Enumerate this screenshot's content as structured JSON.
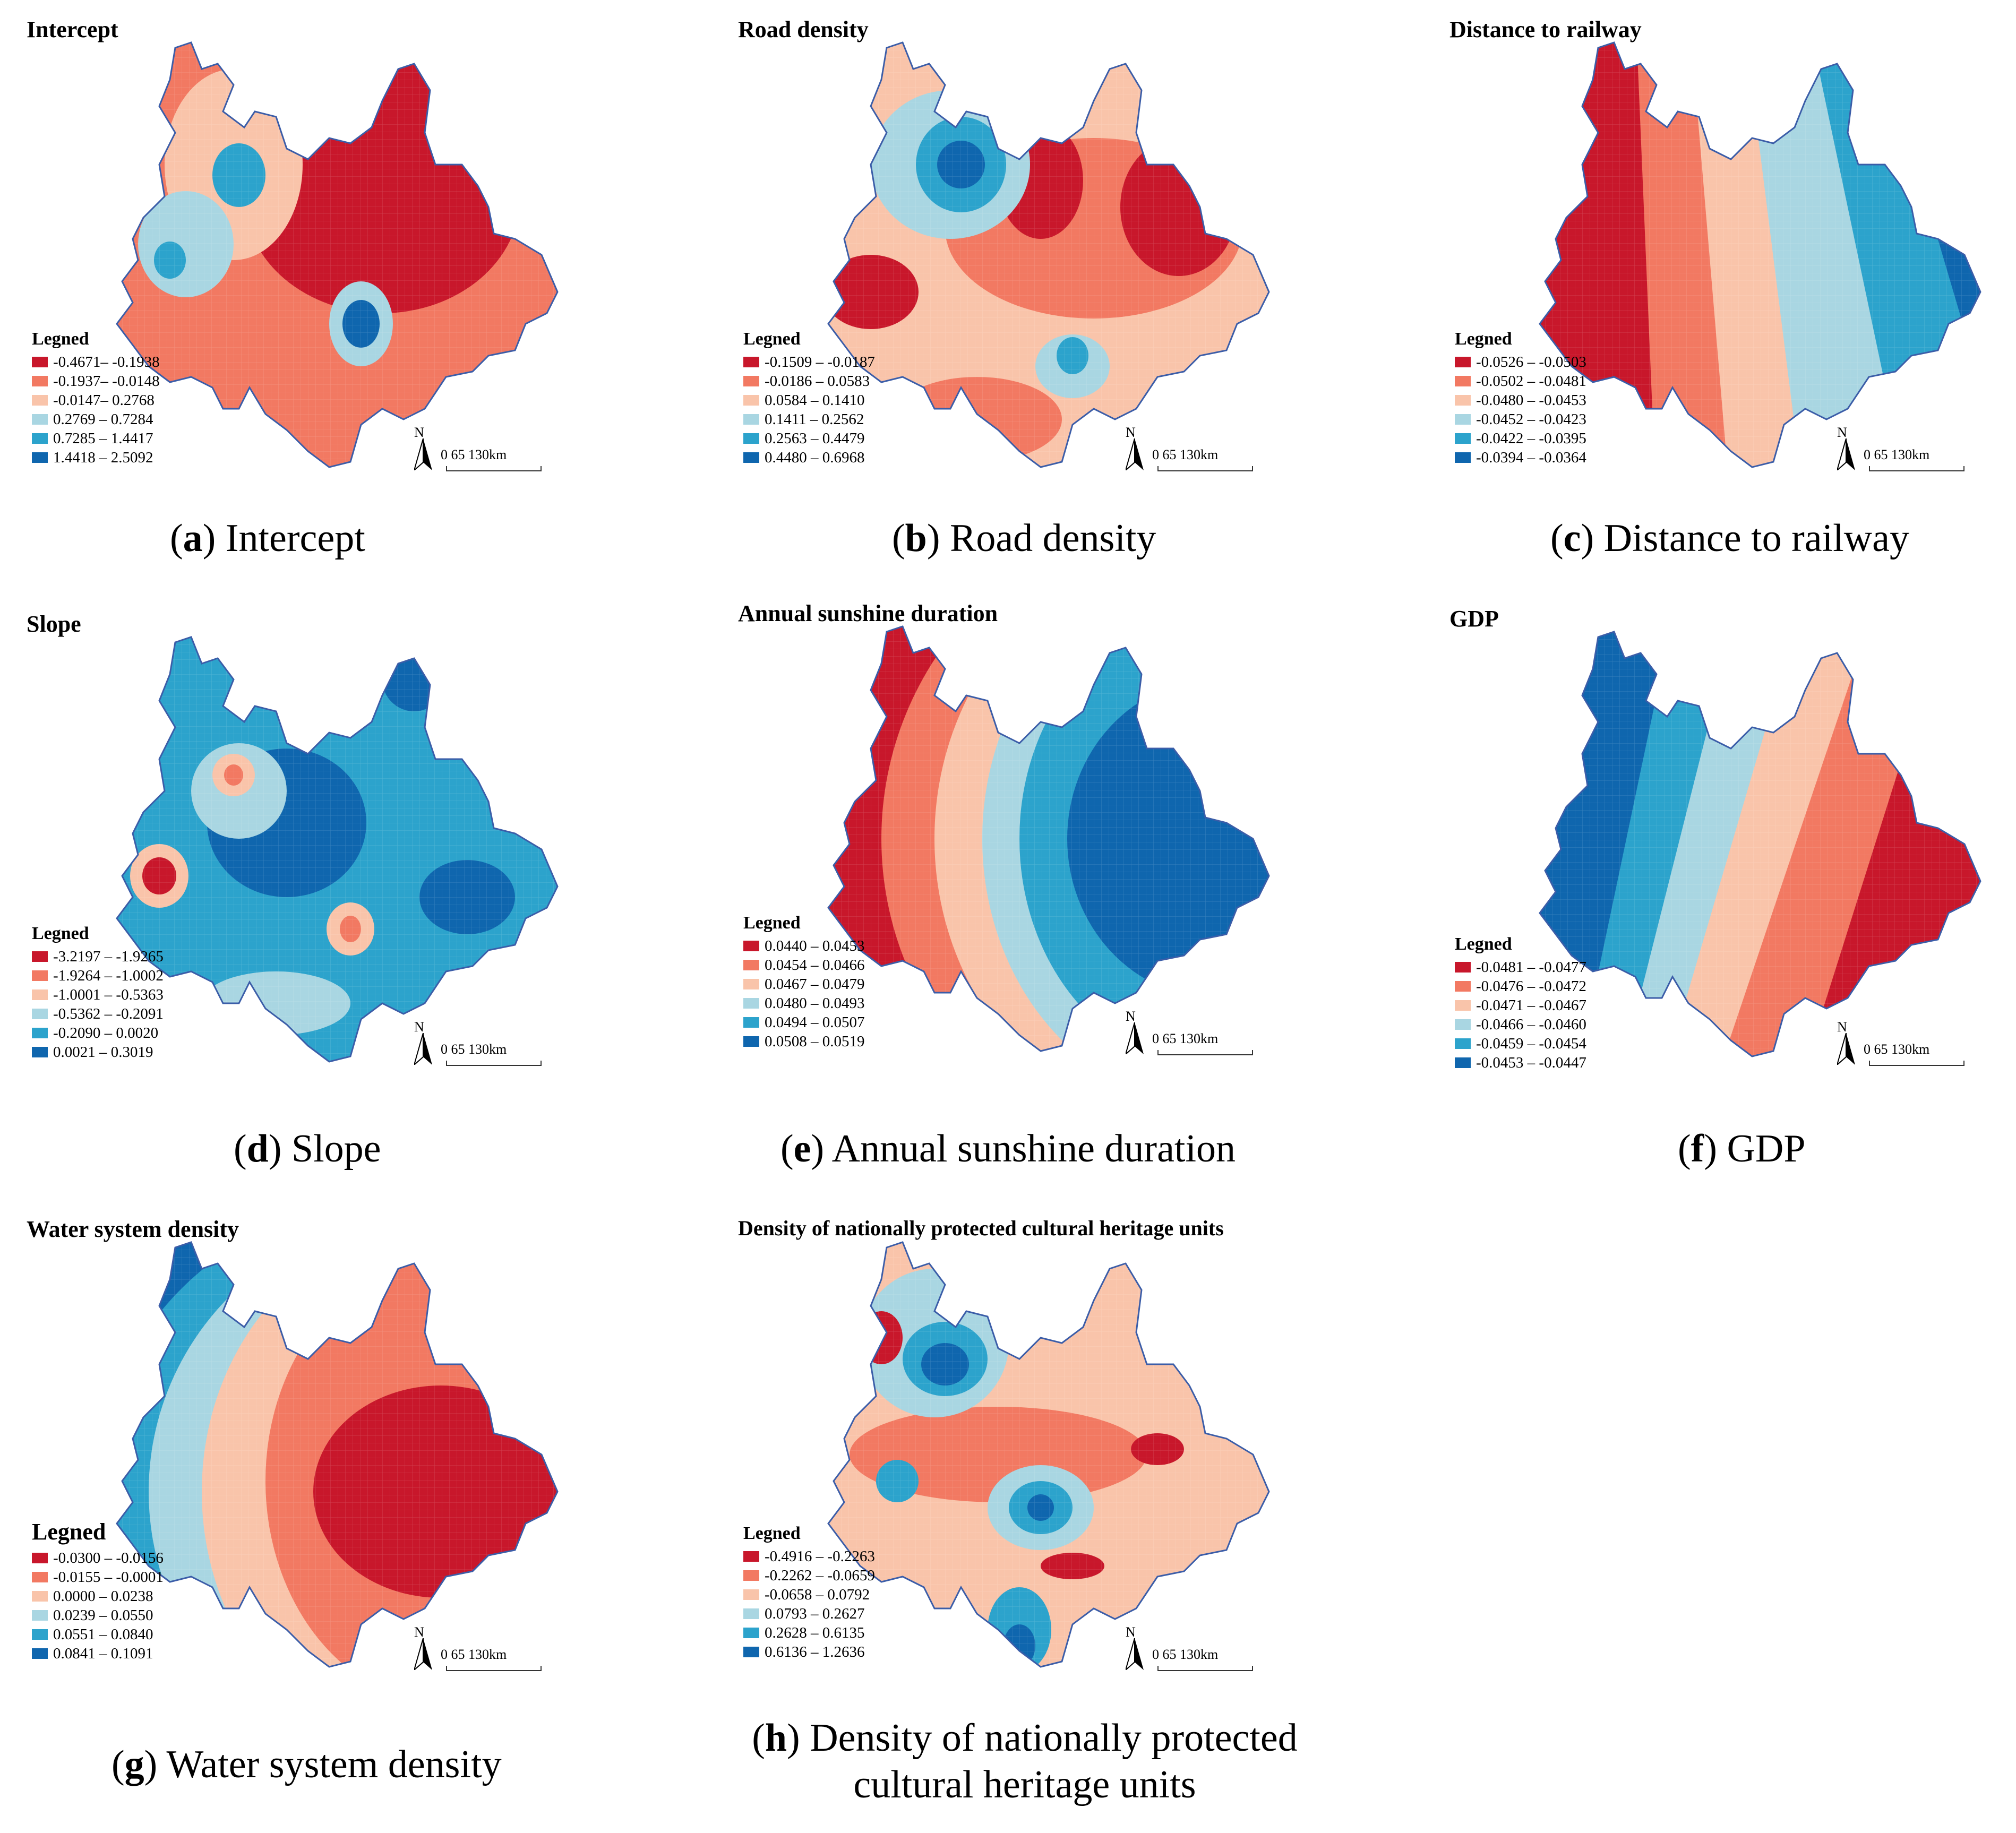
{
  "colors": {
    "c1": "#c8172b",
    "c2": "#f27962",
    "c3": "#f9c4aa",
    "c4": "#a9d6e2",
    "c5": "#2ca3cc",
    "c6": "#0f66ae",
    "border": "#3b5da8"
  },
  "legend_heading": "Legned",
  "scale": {
    "north": "N",
    "label": "0    65    130km"
  },
  "panels": [
    {
      "title": "Intercept",
      "caption_letter": "a",
      "caption_text": "Intercept",
      "legend": [
        "-0.4671– -0.1938",
        "-0.1937– -0.0148",
        "-0.0147– 0.2768",
        "0.2769 – 0.7284",
        "0.7285 – 1.4417",
        "1.4418 – 2.5092"
      ]
    },
    {
      "title": "Road density",
      "caption_letter": "b",
      "caption_text": "Road density",
      "legend": [
        "-0.1509 – -0.0187",
        "-0.0186 – 0.0583",
        "0.0584 – 0.1410",
        "0.1411 – 0.2562",
        "0.2563 – 0.4479",
        "0.4480 – 0.6968"
      ]
    },
    {
      "title": "Distance to railway",
      "caption_letter": "c",
      "caption_text": "Distance to railway",
      "legend": [
        "-0.0526 – -0.0503",
        "-0.0502 – -0.0481",
        "-0.0480 – -0.0453",
        "-0.0452 – -0.0423",
        "-0.0422 – -0.0395",
        "-0.0394 – -0.0364"
      ]
    },
    {
      "title": "Slope",
      "caption_letter": "d",
      "caption_text": "Slope",
      "legend": [
        "-3.2197 – -1.9265",
        "-1.9264 – -1.0002",
        "-1.0001 – -0.5363",
        "-0.5362 – -0.2091",
        "-0.2090 – 0.0020",
        "0.0021 – 0.3019"
      ]
    },
    {
      "title": "Annual sunshine duration",
      "caption_letter": "e",
      "caption_text": "Annual sunshine duration",
      "legend": [
        "0.0440 – 0.0453",
        "0.0454 – 0.0466",
        "0.0467 – 0.0479",
        "0.0480 – 0.0493",
        "0.0494 – 0.0507",
        "0.0508 – 0.0519"
      ]
    },
    {
      "title": "GDP",
      "caption_letter": "f",
      "caption_text": "GDP",
      "legend": [
        "-0.0481 – -0.0477",
        "-0.0476 – -0.0472",
        "-0.0471 – -0.0467",
        "-0.0466 – -0.0460",
        "-0.0459 – -0.0454",
        "-0.0453 – -0.0447"
      ]
    },
    {
      "title": "Water system density",
      "caption_letter": "g",
      "caption_text": "Water system density",
      "legend": [
        "-0.0300 – -0.0156",
        "-0.0155 – -0.0001",
        "0.0000 – 0.0238",
        "0.0239 – 0.0550",
        "0.0551 – 0.0840",
        "0.0841 – 0.1091"
      ]
    },
    {
      "title": "Density of nationally protected cultural heritage units",
      "caption_letter": "h",
      "caption_text": "Density of nationally protected",
      "caption_text2": "cultural heritage units",
      "legend": [
        "-0.4916 – -0.2263",
        "-0.2262 – -0.0659",
        "-0.0658 – 0.0792",
        "0.0793 – 0.2627",
        "0.2628 – 0.6135",
        "0.6136 – 1.2636"
      ]
    }
  ]
}
